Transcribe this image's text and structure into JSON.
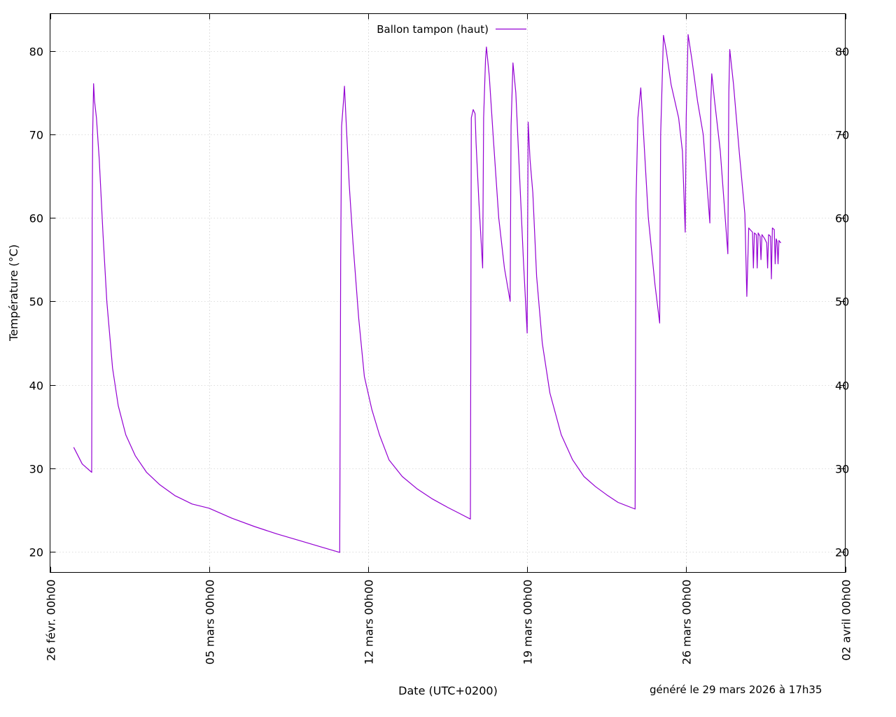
{
  "chart_data": {
    "type": "line",
    "title": "",
    "xlabel": "Date (UTC+0200)",
    "ylabel": "Température (°C)",
    "ylim": [
      17.5,
      84.5
    ],
    "xlim": [
      "2026-02-26 00:00",
      "2026-04-02 00:00"
    ],
    "x_ticks": [
      "26 févr. 00h00",
      "05 mars 00h00",
      "12 mars 00h00",
      "19 mars 00h00",
      "26 mars 00h00",
      "02 avril 00h00"
    ],
    "y_ticks": [
      20,
      30,
      40,
      50,
      60,
      70,
      80
    ],
    "grid": true,
    "legend_position": "top-center",
    "series": [
      {
        "name": "Ballon tampon (haut)",
        "color": "#9400d3",
        "points": [
          [
            "2026-02-27 01:00",
            32.5
          ],
          [
            "2026-02-27 10:00",
            30.5
          ],
          [
            "2026-02-27 20:00",
            29.5
          ],
          [
            "2026-02-27 20:30",
            60.0
          ],
          [
            "2026-02-27 21:00",
            70.0
          ],
          [
            "2026-02-27 22:00",
            76.1
          ],
          [
            "2026-02-27 23:00",
            74.0
          ],
          [
            "2026-02-28 01:00",
            72.0
          ],
          [
            "2026-02-28 04:00",
            67.0
          ],
          [
            "2026-02-28 08:00",
            58.0
          ],
          [
            "2026-02-28 12:00",
            50.0
          ],
          [
            "2026-02-28 18:00",
            42.0
          ],
          [
            "2026-03-01 00:00",
            37.5
          ],
          [
            "2026-03-01 08:00",
            34.0
          ],
          [
            "2026-03-01 18:00",
            31.5
          ],
          [
            "2026-03-02 06:00",
            29.5
          ],
          [
            "2026-03-02 20:00",
            28.0
          ],
          [
            "2026-03-03 12:00",
            26.7
          ],
          [
            "2026-03-04 06:00",
            25.7
          ],
          [
            "2026-03-05 00:00",
            25.2
          ],
          [
            "2026-03-06 00:00",
            24.0
          ],
          [
            "2026-03-07 00:00",
            23.0
          ],
          [
            "2026-03-08 00:00",
            22.1
          ],
          [
            "2026-03-09 00:00",
            21.3
          ],
          [
            "2026-03-10 00:00",
            20.5
          ],
          [
            "2026-03-10 18:00",
            19.9
          ],
          [
            "2026-03-10 19:00",
            55.0
          ],
          [
            "2026-03-10 20:00",
            71.0
          ],
          [
            "2026-03-10 22:00",
            74.0
          ],
          [
            "2026-03-10 23:00",
            75.8
          ],
          [
            "2026-03-11 01:00",
            71.0
          ],
          [
            "2026-03-11 04:00",
            64.0
          ],
          [
            "2026-03-11 08:00",
            57.0
          ],
          [
            "2026-03-11 14:00",
            48.0
          ],
          [
            "2026-03-11 20:00",
            41.0
          ],
          [
            "2026-03-12 04:00",
            37.0
          ],
          [
            "2026-03-12 12:00",
            34.0
          ],
          [
            "2026-03-12 22:00",
            31.0
          ],
          [
            "2026-03-13 12:00",
            29.0
          ],
          [
            "2026-03-14 04:00",
            27.5
          ],
          [
            "2026-03-14 20:00",
            26.3
          ],
          [
            "2026-03-15 12:00",
            25.3
          ],
          [
            "2026-03-16 00:00",
            24.6
          ],
          [
            "2026-03-16 12:00",
            23.9
          ],
          [
            "2026-03-16 13:00",
            72.0
          ],
          [
            "2026-03-16 15:00",
            73.0
          ],
          [
            "2026-03-16 17:00",
            72.5
          ],
          [
            "2026-03-16 18:00",
            69.0
          ],
          [
            "2026-03-16 21:00",
            62.0
          ],
          [
            "2026-03-17 01:00",
            54.0
          ],
          [
            "2026-03-17 02:00",
            72.0
          ],
          [
            "2026-03-17 04:00",
            79.0
          ],
          [
            "2026-03-17 05:00",
            80.5
          ],
          [
            "2026-03-17 08:00",
            77.0
          ],
          [
            "2026-03-17 12:00",
            70.0
          ],
          [
            "2026-03-17 18:00",
            60.0
          ],
          [
            "2026-03-18 00:00",
            54.0
          ],
          [
            "2026-03-18 06:00",
            50.0
          ],
          [
            "2026-03-18 07:00",
            71.0
          ],
          [
            "2026-03-18 09:00",
            78.6
          ],
          [
            "2026-03-18 12:00",
            75.0
          ],
          [
            "2026-03-18 16:00",
            65.0
          ],
          [
            "2026-03-18 20:00",
            55.0
          ],
          [
            "2026-03-19 00:00",
            46.2
          ],
          [
            "2026-03-19 01:00",
            71.5
          ],
          [
            "2026-03-19 03:00",
            67.0
          ],
          [
            "2026-03-19 06:00",
            63.0
          ],
          [
            "2026-03-19 10:00",
            53.0
          ],
          [
            "2026-03-19 16:00",
            45.0
          ],
          [
            "2026-03-20 00:00",
            39.0
          ],
          [
            "2026-03-20 12:00",
            34.0
          ],
          [
            "2026-03-21 00:00",
            31.0
          ],
          [
            "2026-03-21 12:00",
            29.0
          ],
          [
            "2026-03-22 00:00",
            27.8
          ],
          [
            "2026-03-22 12:00",
            26.8
          ],
          [
            "2026-03-23 00:00",
            25.9
          ],
          [
            "2026-03-23 18:00",
            25.1
          ],
          [
            "2026-03-23 19:00",
            62.0
          ],
          [
            "2026-03-23 21:00",
            72.0
          ],
          [
            "2026-03-24 00:00",
            75.6
          ],
          [
            "2026-03-24 03:00",
            70.0
          ],
          [
            "2026-03-24 08:00",
            60.0
          ],
          [
            "2026-03-24 15:00",
            52.0
          ],
          [
            "2026-03-24 20:00",
            47.4
          ],
          [
            "2026-03-24 21:00",
            70.0
          ],
          [
            "2026-03-25 00:00",
            81.9
          ],
          [
            "2026-03-25 03:00",
            80.0
          ],
          [
            "2026-03-25 08:00",
            76.0
          ],
          [
            "2026-03-25 16:00",
            72.0
          ],
          [
            "2026-03-25 20:00",
            68.0
          ],
          [
            "2026-03-25 23:00",
            58.3
          ],
          [
            "2026-03-26 00:00",
            72.0
          ],
          [
            "2026-03-26 02:00",
            82.0
          ],
          [
            "2026-03-26 06:00",
            79.0
          ],
          [
            "2026-03-26 12:00",
            74.0
          ],
          [
            "2026-03-26 18:00",
            70.0
          ],
          [
            "2026-03-27 01:00",
            59.4
          ],
          [
            "2026-03-27 02:00",
            74.0
          ],
          [
            "2026-03-27 03:00",
            77.3
          ],
          [
            "2026-03-27 06:00",
            74.0
          ],
          [
            "2026-03-27 12:00",
            68.0
          ],
          [
            "2026-03-27 20:00",
            55.7
          ],
          [
            "2026-03-27 21:00",
            75.0
          ],
          [
            "2026-03-27 22:00",
            80.2
          ],
          [
            "2026-03-28 02:00",
            76.0
          ],
          [
            "2026-03-28 08:00",
            68.0
          ],
          [
            "2026-03-28 14:00",
            60.5
          ],
          [
            "2026-03-28 16:00",
            50.6
          ],
          [
            "2026-03-28 18:00",
            58.8
          ],
          [
            "2026-03-28 22:00",
            58.3
          ],
          [
            "2026-03-28 23:00",
            54.0
          ],
          [
            "2026-03-29 00:00",
            58.2
          ],
          [
            "2026-03-29 02:00",
            58.0
          ],
          [
            "2026-03-29 03:00",
            54.0
          ],
          [
            "2026-03-29 04:00",
            58.2
          ],
          [
            "2026-03-29 06:00",
            57.8
          ],
          [
            "2026-03-29 07:00",
            55.0
          ],
          [
            "2026-03-29 08:00",
            58.0
          ],
          [
            "2026-03-29 11:00",
            57.5
          ],
          [
            "2026-03-29 13:00",
            57.0
          ],
          [
            "2026-03-29 14:00",
            54.0
          ],
          [
            "2026-03-29 15:00",
            58.0
          ],
          [
            "2026-03-29 17:00",
            57.8
          ],
          [
            "2026-03-29 18:00",
            52.7
          ],
          [
            "2026-03-29 19:00",
            58.8
          ],
          [
            "2026-03-29 21:00",
            58.6
          ],
          [
            "2026-03-29 22:00",
            54.5
          ],
          [
            "2026-03-29 23:00",
            57.5
          ],
          [
            "2026-03-30 00:00",
            57.2
          ],
          [
            "2026-03-30 01:00",
            54.5
          ],
          [
            "2026-03-30 02:00",
            57.3
          ],
          [
            "2026-03-30 04:00",
            57.0
          ]
        ]
      }
    ]
  },
  "footer": {
    "generated": "généré le 29 mars 2026 à 17h35"
  }
}
